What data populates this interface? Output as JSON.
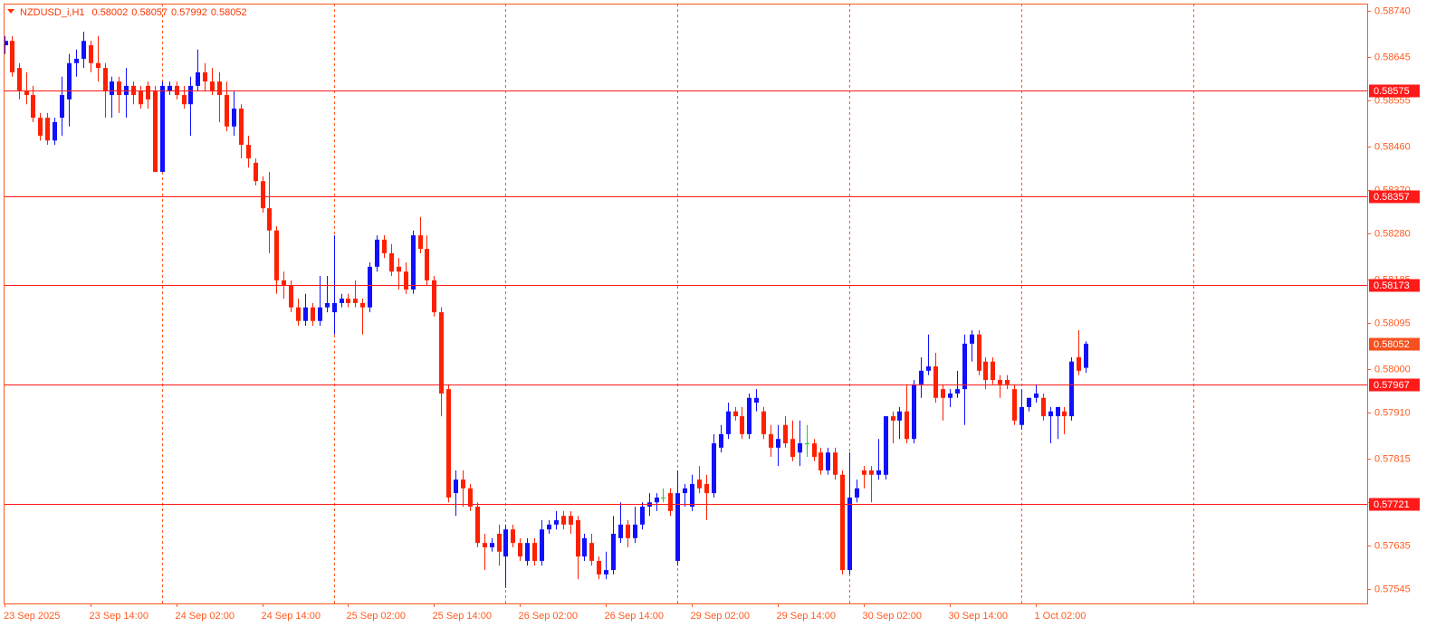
{
  "chart_data": {
    "type": "candlestick",
    "title": "NZDUSD_i,H1",
    "open": [
      0.58669,
      0.58678,
      0.58622,
      0.58575,
      0.58566,
      0.58519,
      0.58519,
      0.58472,
      0.58519,
      0.58557,
      0.58632,
      0.58641,
      0.58669,
      0.58632,
      0.58622,
      0.58566,
      0.58594,
      0.58566,
      0.58585,
      0.58575,
      0.58585,
      0.58575,
      0.58407,
      0.58575,
      0.58585,
      0.58566,
      0.58547,
      0.58585,
      0.58613,
      0.58594,
      0.58594,
      0.58566,
      0.58501,
      0.58538,
      0.58463,
      0.58426,
      0.58388,
      0.58332,
      0.58286,
      0.58183,
      0.58173,
      0.58127,
      0.58099,
      0.58127,
      0.58099,
      0.58127,
      0.58117,
      0.58136,
      0.58145,
      0.58145,
      0.58136,
      0.58127,
      0.58211,
      0.58267,
      0.58239,
      0.58211,
      0.58201,
      0.58164,
      0.58276,
      0.58248,
      0.58183,
      0.58117,
      0.57958,
      0.57743,
      0.57771,
      0.57753,
      0.57715,
      0.5764,
      0.57631,
      0.57659,
      0.57612,
      0.57668,
      0.5764,
      0.57603,
      0.5764,
      0.57603,
      0.57668,
      0.57678,
      0.57696,
      0.57696,
      0.57687,
      0.57612,
      0.5764,
      0.57603,
      0.57575,
      0.57584,
      0.5765,
      0.57678,
      0.5765,
      0.57678,
      0.57715,
      0.57724,
      0.57734,
      0.57743,
      0.57603,
      0.57743,
      0.57715,
      0.57771,
      0.57762,
      0.57743,
      0.57837,
      0.57865,
      0.57912,
      0.57902,
      0.57865,
      0.5793,
      0.57912,
      0.57865,
      0.57837,
      0.57884,
      0.57855,
      0.57827,
      0.57846,
      0.57846,
      0.57827,
      0.5779,
      0.57827,
      0.57781,
      0.57584,
      0.57734,
      0.5779,
      0.5779,
      0.57781,
      0.57781,
      0.57902,
      0.57893,
      0.57912,
      0.57855,
      0.57968,
      0.57996,
      0.58005,
      0.57958,
      0.5794,
      0.57949,
      0.57958,
      0.58052,
      0.58071,
      0.58015,
      0.58015,
      0.57977,
      0.57977,
      0.57958,
      0.57884,
      0.57921,
      0.5794,
      0.5794,
      0.57902,
      0.57902,
      0.57912,
      0.57902,
      0.58024,
      0.58002
    ],
    "high": [
      0.58688,
      0.58688,
      0.58632,
      0.58613,
      0.58585,
      0.58529,
      0.58529,
      0.58519,
      0.58604,
      0.58651,
      0.5866,
      0.58697,
      0.58678,
      0.58688,
      0.58632,
      0.58604,
      0.58604,
      0.58622,
      0.58594,
      0.58585,
      0.58594,
      0.58585,
      0.58594,
      0.58594,
      0.58594,
      0.58585,
      0.58604,
      0.5866,
      0.58632,
      0.58622,
      0.58613,
      0.58594,
      0.58575,
      0.58547,
      0.58482,
      0.58435,
      0.58398,
      0.58407,
      0.58295,
      0.58201,
      0.58183,
      0.58145,
      0.58155,
      0.58136,
      0.58192,
      0.58192,
      0.58276,
      0.58155,
      0.58155,
      0.58183,
      0.58145,
      0.5822,
      0.58276,
      0.58276,
      0.58258,
      0.58229,
      0.5822,
      0.58286,
      0.58314,
      0.58276,
      0.58192,
      0.58127,
      0.57968,
      0.5779,
      0.5779,
      0.57762,
      0.57724,
      0.57659,
      0.5765,
      0.57678,
      0.57678,
      0.57678,
      0.5765,
      0.5765,
      0.5765,
      0.57687,
      0.57687,
      0.57706,
      0.57706,
      0.57706,
      0.57696,
      0.57659,
      0.57659,
      0.57612,
      0.57622,
      0.57696,
      0.57724,
      0.57687,
      0.57715,
      0.57724,
      0.57743,
      0.57743,
      0.57753,
      0.57753,
      0.5779,
      0.57762,
      0.57781,
      0.57799,
      0.57781,
      0.57865,
      0.57884,
      0.5793,
      0.57921,
      0.57921,
      0.57949,
      0.57958,
      0.57921,
      0.57884,
      0.57884,
      0.57902,
      0.57893,
      0.57893,
      0.57884,
      0.57855,
      0.57837,
      0.57837,
      0.57837,
      0.5779,
      0.57827,
      0.57771,
      0.57799,
      0.57799,
      0.57855,
      0.57902,
      0.57912,
      0.57921,
      0.57968,
      0.57977,
      0.58024,
      0.58071,
      0.58033,
      0.57968,
      0.57958,
      0.57996,
      0.58071,
      0.5808,
      0.5808,
      0.58024,
      0.58024,
      0.57987,
      0.57987,
      0.57968,
      0.57958,
      0.5794,
      0.57968,
      0.57949,
      0.57921,
      0.57921,
      0.57921,
      0.58024,
      0.5808,
      0.58057
    ],
    "low": [
      0.58651,
      0.58604,
      0.58557,
      0.58547,
      0.5851,
      0.58472,
      0.58463,
      0.58463,
      0.58482,
      0.58501,
      0.58604,
      0.58622,
      0.58613,
      0.58594,
      0.58519,
      0.58519,
      0.58529,
      0.58519,
      0.58547,
      0.58538,
      0.58538,
      0.58407,
      0.58407,
      0.58566,
      0.58557,
      0.58538,
      0.58482,
      0.58575,
      0.58575,
      0.58566,
      0.5851,
      0.58491,
      0.58482,
      0.58435,
      0.58416,
      0.58379,
      0.58323,
      0.58239,
      0.58155,
      0.58145,
      0.58117,
      0.58089,
      0.58089,
      0.58089,
      0.58089,
      0.58117,
      0.58071,
      0.58127,
      0.58127,
      0.58127,
      0.58071,
      0.58117,
      0.58201,
      0.58229,
      0.58192,
      0.58164,
      0.58155,
      0.58155,
      0.58239,
      0.58173,
      0.58108,
      0.57902,
      0.57724,
      0.57696,
      0.57715,
      0.57706,
      0.57631,
      0.57584,
      0.57622,
      0.57593,
      0.57547,
      0.57631,
      0.57603,
      0.57593,
      0.57593,
      0.57593,
      0.57659,
      0.57668,
      0.57668,
      0.57659,
      0.57565,
      0.57603,
      0.57593,
      0.57565,
      0.57565,
      0.57575,
      0.5764,
      0.57631,
      0.5764,
      0.57668,
      0.57696,
      0.57706,
      0.57724,
      0.57696,
      0.57593,
      0.57715,
      0.57706,
      0.57743,
      0.57687,
      0.57734,
      0.57827,
      0.57855,
      0.57893,
      0.57855,
      0.57855,
      0.57912,
      0.57855,
      0.57818,
      0.57799,
      0.57837,
      0.57809,
      0.57799,
      0.57818,
      0.57809,
      0.57781,
      0.57781,
      0.57771,
      0.57575,
      0.57575,
      0.57724,
      0.57753,
      0.57724,
      0.57771,
      0.57771,
      0.57846,
      0.57855,
      0.57846,
      0.57846,
      0.5794,
      0.57987,
      0.5793,
      0.57893,
      0.57921,
      0.5794,
      0.57884,
      0.58015,
      0.57987,
      0.57958,
      0.57968,
      0.5794,
      0.57958,
      0.57884,
      0.57874,
      0.57912,
      0.5793,
      0.57893,
      0.57846,
      0.57855,
      0.57865,
      0.57893,
      0.57987,
      0.57992
    ],
    "close": [
      0.58678,
      0.58613,
      0.58575,
      0.58566,
      0.58519,
      0.58482,
      0.58472,
      0.5851,
      0.58566,
      0.58632,
      0.58641,
      0.58678,
      0.58632,
      0.58622,
      0.58575,
      0.58594,
      0.58566,
      0.58585,
      0.58566,
      0.58547,
      0.58557,
      0.58407,
      0.58585,
      0.58585,
      0.58566,
      0.58547,
      0.58585,
      0.58613,
      0.58594,
      0.58575,
      0.58566,
      0.58501,
      0.58538,
      0.58463,
      0.58435,
      0.58388,
      0.58332,
      0.58286,
      0.58183,
      0.58173,
      0.58127,
      0.58099,
      0.58127,
      0.58099,
      0.58127,
      0.58136,
      0.58136,
      0.58145,
      0.58136,
      0.58136,
      0.58127,
      0.58211,
      0.58267,
      0.58239,
      0.58201,
      0.58201,
      0.58164,
      0.58276,
      0.58248,
      0.58183,
      0.58117,
      0.57949,
      0.57734,
      0.57771,
      0.57753,
      0.57715,
      0.5764,
      0.57631,
      0.5764,
      0.57622,
      0.57668,
      0.5764,
      0.57612,
      0.5764,
      0.57603,
      0.57668,
      0.57678,
      0.57687,
      0.57678,
      0.57678,
      0.57612,
      0.5765,
      0.57603,
      0.57575,
      0.57584,
      0.57659,
      0.57678,
      0.5765,
      0.57678,
      0.57715,
      0.57724,
      0.57734,
      0.57734,
      0.57706,
      0.57743,
      0.57753,
      0.57762,
      0.57753,
      0.57743,
      0.57846,
      0.57865,
      0.57912,
      0.57902,
      0.57865,
      0.5794,
      0.5794,
      0.57865,
      0.57837,
      0.57855,
      0.57846,
      0.57818,
      0.57846,
      0.57846,
      0.57818,
      0.5779,
      0.57827,
      0.57781,
      0.57584,
      0.57734,
      0.57753,
      0.57781,
      0.57781,
      0.5779,
      0.57902,
      0.57893,
      0.57912,
      0.57855,
      0.57968,
      0.57996,
      0.58005,
      0.5794,
      0.5794,
      0.57949,
      0.57958,
      0.58052,
      0.58071,
      0.57996,
      0.57977,
      0.57977,
      0.57968,
      0.57968,
      0.57893,
      0.57921,
      0.5794,
      0.57949,
      0.57902,
      0.57912,
      0.57921,
      0.57902,
      0.58015,
      0.57996,
      0.58052
    ],
    "xlim": [
      -0.1,
      190.3
    ],
    "xticks": [
      {
        "value": 0,
        "label": "23 Sep 2025"
      },
      {
        "value": 12,
        "label": "23 Sep 14:00"
      },
      {
        "value": 24,
        "label": "24 Sep 02:00"
      },
      {
        "value": 36,
        "label": "24 Sep 14:00"
      },
      {
        "value": 48,
        "label": "25 Sep 02:00"
      },
      {
        "value": 60,
        "label": "25 Sep 14:00"
      },
      {
        "value": 72,
        "label": "26 Sep 02:00"
      },
      {
        "value": 84,
        "label": "26 Sep 14:00"
      },
      {
        "value": 96,
        "label": "29 Sep 02:00"
      },
      {
        "value": 108,
        "label": "29 Sep 14:00"
      },
      {
        "value": 120,
        "label": "30 Sep 02:00"
      },
      {
        "value": 132,
        "label": "30 Sep 14:00"
      },
      {
        "value": 144,
        "label": "1 Oct 02:00"
      }
    ],
    "separators": [
      22,
      46,
      70,
      94,
      118,
      142,
      166
    ],
    "ylim": [
      0.57515,
      0.58755
    ],
    "yticks": [
      {
        "value": 0.5874,
        "label": "0.58740"
      },
      0.58645,
      0.58555,
      {
        "value": 0.5846,
        "label": "0.58460"
      },
      {
        "value": 0.5837,
        "label": "0.58370"
      },
      {
        "value": 0.5828,
        "label": "0.58280"
      },
      0.58185,
      0.58095,
      {
        "value": 0.58,
        "label": "0.58000"
      },
      {
        "value": 0.5791,
        "label": "0.57910"
      },
      0.57815,
      0.57725,
      0.57635,
      0.57545
    ],
    "levels": [
      0.58575,
      0.58357,
      0.58173,
      0.57967,
      0.57721
    ],
    "level_color": "#ff1a1a",
    "bull_color": "#1010ff",
    "bear_color": "#ff2000",
    "doji_color": "#22cc22",
    "axis_color": "#ff5a1f",
    "price_label_color": "#f4511e"
  }
}
